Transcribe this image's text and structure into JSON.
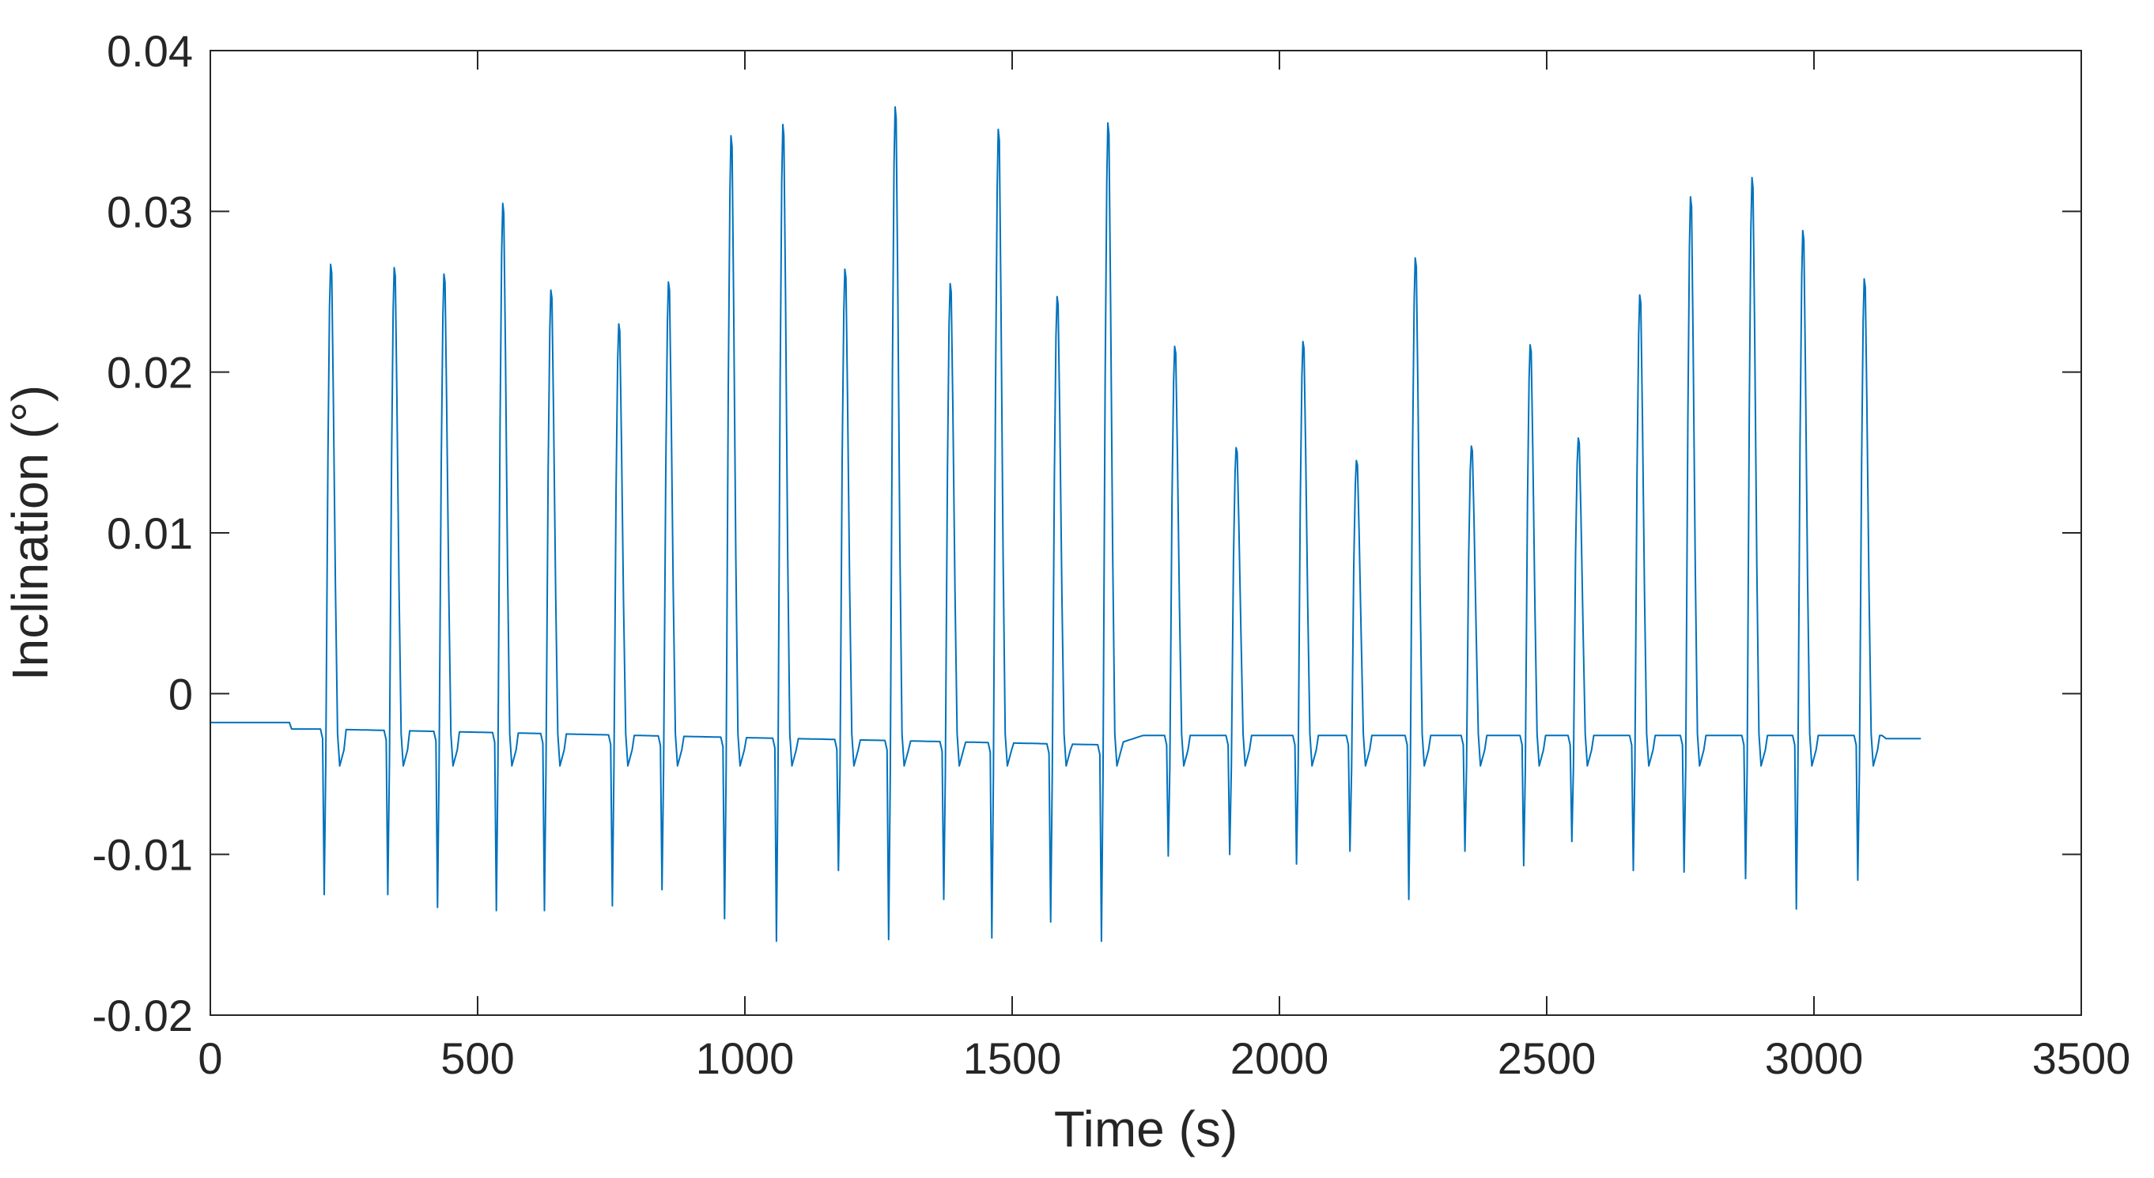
{
  "chart_data": {
    "type": "line",
    "title": "",
    "xlabel": "Time (s)",
    "ylabel": "Inclination (°)",
    "xlim": [
      0,
      3500
    ],
    "ylim": [
      -0.02,
      0.04
    ],
    "xticks": [
      0,
      500,
      1000,
      1500,
      2000,
      2500,
      3000,
      3500
    ],
    "xtick_labels": [
      "0",
      "500",
      "1000",
      "1500",
      "2000",
      "2500",
      "3000",
      "3500"
    ],
    "yticks": [
      -0.02,
      -0.01,
      0,
      0.01,
      0.02,
      0.03,
      0.04
    ],
    "ytick_labels": [
      "-0.02",
      "-0.01",
      "0",
      "0.01",
      "0.02",
      "0.03",
      "0.04"
    ],
    "grid": false,
    "colors": {
      "line": "#0072BD",
      "axes": "#262626",
      "background": "#ffffff"
    },
    "series": [
      {
        "baseline": [
          [
            0,
            -0.0018
          ],
          [
            150,
            -0.0018
          ],
          [
            152,
            -0.0022
          ],
          [
            200,
            -0.0022
          ],
          [
            1690,
            -0.0032
          ],
          [
            1745,
            -0.0026
          ],
          [
            3130,
            -0.0026
          ],
          [
            3132,
            -0.0028
          ],
          [
            3200,
            -0.0028
          ]
        ],
        "peaks": [
          {
            "t": 226,
            "max": 0.0267,
            "min": -0.0125
          },
          {
            "t": 345,
            "max": 0.0265,
            "min": -0.0125
          },
          {
            "t": 438,
            "max": 0.0261,
            "min": -0.0133
          },
          {
            "t": 548,
            "max": 0.0305,
            "min": -0.0135
          },
          {
            "t": 638,
            "max": 0.0251,
            "min": -0.0135
          },
          {
            "t": 765,
            "max": 0.023,
            "min": -0.0132
          },
          {
            "t": 858,
            "max": 0.0256,
            "min": -0.0122
          },
          {
            "t": 975,
            "max": 0.0347,
            "min": -0.014
          },
          {
            "t": 1072,
            "max": 0.0354,
            "min": -0.0154
          },
          {
            "t": 1188,
            "max": 0.0264,
            "min": -0.011
          },
          {
            "t": 1282,
            "max": 0.0365,
            "min": -0.0153
          },
          {
            "t": 1385,
            "max": 0.0255,
            "min": -0.0128
          },
          {
            "t": 1475,
            "max": 0.0351,
            "min": -0.0152
          },
          {
            "t": 1585,
            "max": 0.0247,
            "min": -0.0142
          },
          {
            "t": 1680,
            "max": 0.0355,
            "min": -0.0154
          },
          {
            "t": 1805,
            "max": 0.0216,
            "min": -0.0101
          },
          {
            "t": 1920,
            "max": 0.0153,
            "min": -0.01
          },
          {
            "t": 2045,
            "max": 0.0219,
            "min": -0.0106
          },
          {
            "t": 2145,
            "max": 0.0145,
            "min": -0.0098
          },
          {
            "t": 2255,
            "max": 0.0271,
            "min": -0.0128
          },
          {
            "t": 2360,
            "max": 0.0154,
            "min": -0.0098
          },
          {
            "t": 2470,
            "max": 0.0217,
            "min": -0.0107
          },
          {
            "t": 2560,
            "max": 0.0159,
            "min": -0.0092
          },
          {
            "t": 2675,
            "max": 0.0248,
            "min": -0.011
          },
          {
            "t": 2770,
            "max": 0.0309,
            "min": -0.0111
          },
          {
            "t": 2885,
            "max": 0.0321,
            "min": -0.0115
          },
          {
            "t": 2980,
            "max": 0.0288,
            "min": -0.0134
          },
          {
            "t": 3095,
            "max": 0.0258,
            "min": -0.0116
          }
        ]
      }
    ]
  }
}
